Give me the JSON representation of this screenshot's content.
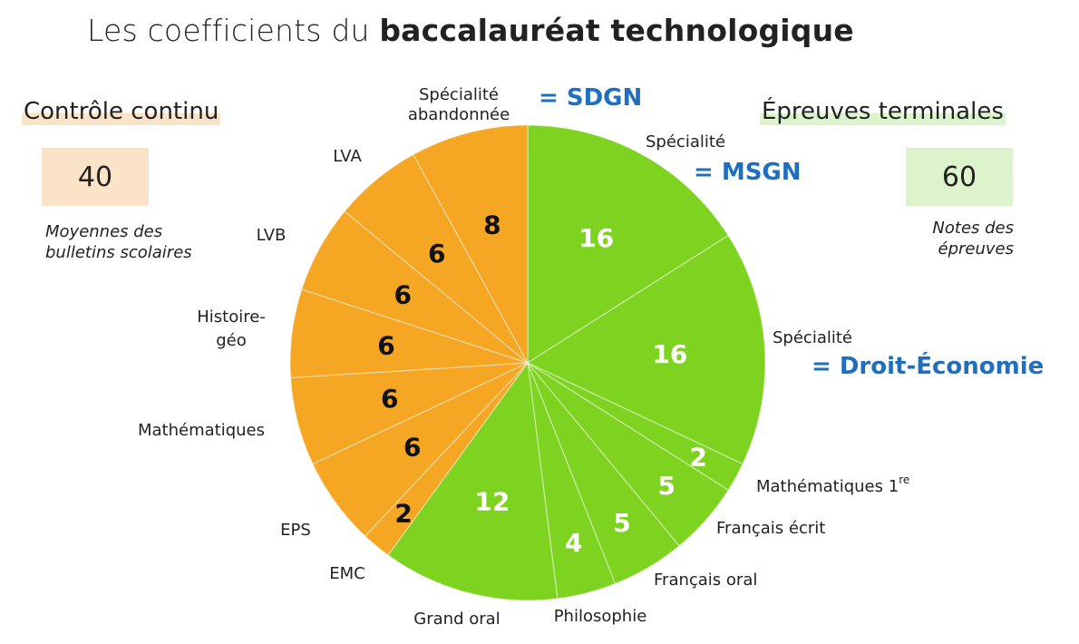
{
  "title": {
    "prefix": "Les coefficients du ",
    "bold": "baccalauréat technologique"
  },
  "left_panel": {
    "title": "Contrôle continu",
    "total": "40",
    "note_line1": "Moyennes des",
    "note_line2": "bulletins scolaires"
  },
  "right_panel": {
    "title": "Épreuves terminales",
    "total": "60",
    "note_line1": "Notes des",
    "note_line2": "épreuves"
  },
  "colors": {
    "terminal": "#7ed321",
    "continuous": "#f5a623",
    "edge": "#ffffff",
    "accent_blue": "#1f6fc0"
  },
  "chart_data": {
    "type": "pie",
    "title": "Les coefficients du baccalauréat technologique",
    "slices": [
      {
        "label": "Spécialité",
        "value": 16,
        "group": "Épreuves terminales",
        "annotation": "= MSGN"
      },
      {
        "label": "Spécialité",
        "value": 16,
        "group": "Épreuves terminales",
        "annotation": "= Droit-Économie"
      },
      {
        "label": "Mathématiques 1re",
        "value": 2,
        "group": "Épreuves terminales"
      },
      {
        "label": "Français écrit",
        "value": 5,
        "group": "Épreuves terminales"
      },
      {
        "label": "Français oral",
        "value": 5,
        "group": "Épreuves terminales"
      },
      {
        "label": "Philosophie",
        "value": 4,
        "group": "Épreuves terminales"
      },
      {
        "label": "Grand oral",
        "value": 12,
        "group": "Épreuves terminales"
      },
      {
        "label": "EMC",
        "value": 2,
        "group": "Contrôle continu"
      },
      {
        "label": "EPS",
        "value": 6,
        "group": "Contrôle continu"
      },
      {
        "label": "Mathématiques",
        "value": 6,
        "group": "Contrôle continu"
      },
      {
        "label": "Histoire-géo",
        "value": 6,
        "group": "Contrôle continu"
      },
      {
        "label": "LVB",
        "value": 6,
        "group": "Contrôle continu"
      },
      {
        "label": "LVA",
        "value": 6,
        "group": "Contrôle continu"
      },
      {
        "label": "Spécialité abandonnée",
        "value": 8,
        "group": "Contrôle continu",
        "annotation": "= SDGN"
      }
    ],
    "labels": {
      "spe_abandon_line1": "Spécialité",
      "spe_abandon_line2": "abandonnée",
      "spe_abandon_annotation": "= SDGN",
      "spe1": "Spécialité",
      "spe1_annotation": "= MSGN",
      "spe2": "Spécialité",
      "spe2_annotation": "= Droit-Économie",
      "math1re": "Mathématiques 1",
      "math1re_sup": "re",
      "francais_ecrit": "Français écrit",
      "francais_oral": "Français oral",
      "philosophie": "Philosophie",
      "grand_oral": "Grand oral",
      "emc": "EMC",
      "eps": "EPS",
      "mathematiques": "Mathématiques",
      "histoire_line1": "Histoire-",
      "histoire_line2": "géo",
      "lvb": "LVB",
      "lva": "LVA"
    }
  }
}
